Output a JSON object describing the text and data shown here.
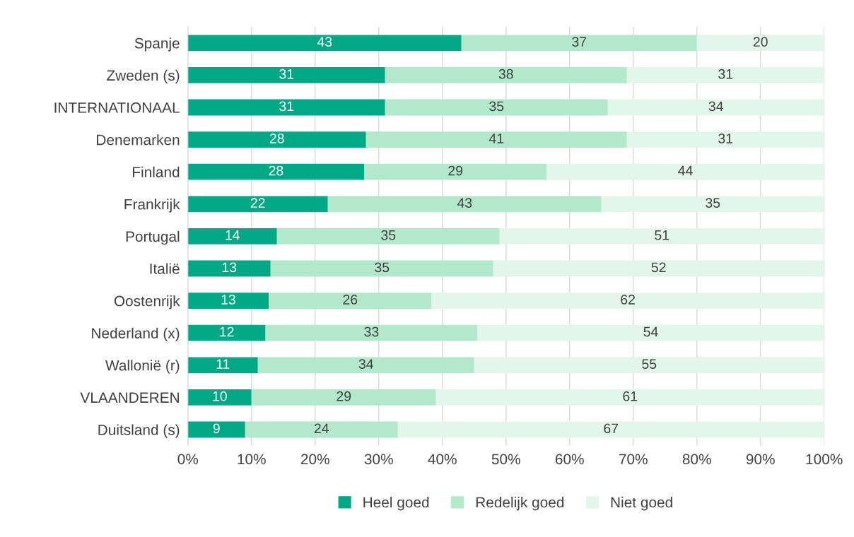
{
  "chart_data": {
    "type": "bar",
    "orientation": "horizontal",
    "stacked": true,
    "categories": [
      "Spanje",
      "Zweden (s)",
      "INTERNATIONAAL",
      "Denemarken",
      "Finland",
      "Frankrijk",
      "Portugal",
      "Italië",
      "Oostenrijk",
      "Nederland (x)",
      "Wallonië (r)",
      "VLAANDEREN",
      "Duitsland (s)"
    ],
    "series": [
      {
        "name": "Heel goed",
        "color": "#00a886",
        "values": [
          43,
          31,
          31,
          28,
          27.7,
          22,
          14,
          13,
          12.7,
          12.2,
          11,
          10,
          9
        ],
        "value_labels": [
          "43",
          "31",
          "31",
          "28",
          "28",
          "22",
          "14",
          "13",
          "13",
          "12",
          "11",
          "10",
          "9"
        ]
      },
      {
        "name": "Redelijk goed",
        "color": "#b2e8cb",
        "values": [
          37,
          38,
          35,
          41,
          28.7,
          43,
          35,
          35,
          25.6,
          33.3,
          34,
          29,
          24
        ],
        "value_labels": [
          "37",
          "38",
          "35",
          "41",
          "29",
          "43",
          "35",
          "35",
          "26",
          "33",
          "34",
          "29",
          "24"
        ]
      },
      {
        "name": "Niet goed",
        "color": "#e2f6ec",
        "values": [
          20,
          31,
          34,
          31,
          43.6,
          35,
          51,
          52,
          61.7,
          54.5,
          55,
          61,
          67
        ],
        "value_labels": [
          "20",
          "31",
          "34",
          "31",
          "44",
          "35",
          "51",
          "52",
          "62",
          "54",
          "55",
          "61",
          "67"
        ]
      }
    ],
    "xlim": [
      0,
      100
    ],
    "xticks": [
      {
        "value": 0,
        "label": "0%"
      },
      {
        "value": 10,
        "label": "10%"
      },
      {
        "value": 20,
        "label": "20%"
      },
      {
        "value": 30,
        "label": "30%"
      },
      {
        "value": 40,
        "label": "40%"
      },
      {
        "value": 50,
        "label": "50%"
      },
      {
        "value": 60,
        "label": "60%"
      },
      {
        "value": 70,
        "label": "70%"
      },
      {
        "value": 80,
        "label": "80%"
      },
      {
        "value": 90,
        "label": "90%"
      },
      {
        "value": 100,
        "label": "100%"
      }
    ],
    "grid": "x",
    "legend": "bottom"
  }
}
